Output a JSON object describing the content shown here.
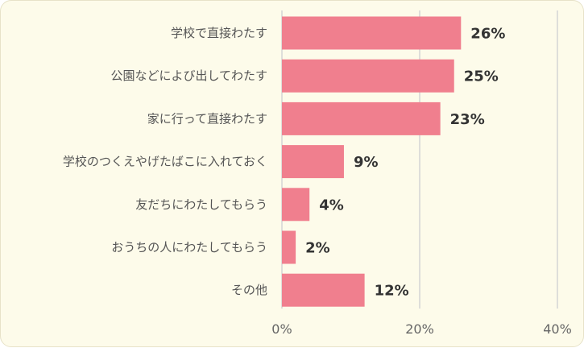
{
  "colors": {
    "background": "#fdfbea",
    "bar": "#f07f8e",
    "grid": "#d4d4d4"
  },
  "chart_data": {
    "type": "bar",
    "orientation": "horizontal",
    "categories": [
      "学校で直接わたす",
      "公園などによび出してわたす",
      "家に行って直接わたす",
      "学校のつくえやげたばこに入れておく",
      "友だちにわたしてもらう",
      "おうちの人にわたしてもらう",
      "その他"
    ],
    "values": [
      26,
      25,
      23,
      9,
      4,
      2,
      12
    ],
    "value_labels": [
      "26%",
      "25%",
      "23%",
      "9%",
      "4%",
      "2%",
      "12%"
    ],
    "xlim": [
      0,
      40
    ],
    "x_ticks": [
      0,
      20,
      40
    ],
    "x_tick_labels": [
      "0%",
      "20%",
      "40%"
    ],
    "grid": true,
    "legend": "none"
  }
}
